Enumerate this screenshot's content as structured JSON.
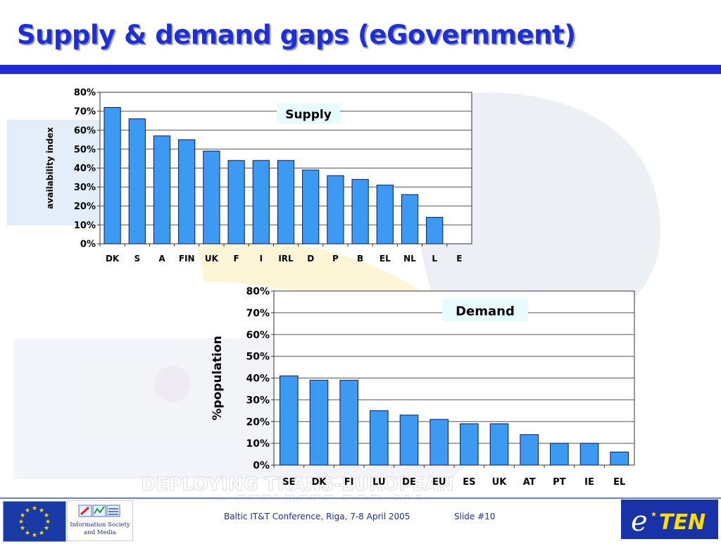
{
  "slide": {
    "title": "Supply & demand gaps (eGovernment)",
    "footer_text": "Baltic IT&T Conference, Riga, 7-8 April 2005",
    "slide_number": "Slide #10",
    "watermark_text": [
      "DEPLOYING TRANS-EUROPEAN",
      "e-SERVICES FOR ALL"
    ],
    "logos": {
      "information_society": [
        "Information Society",
        "and Media"
      ],
      "eten": [
        "e",
        "TEN"
      ]
    },
    "colors": {
      "title": "#1e2fd6",
      "title_bar": "#1c2bd6",
      "bar_fill": "#3d9af2",
      "bar_stroke": "#0b1a5e",
      "label_box": "#e8fbff"
    }
  },
  "chart_data": [
    {
      "type": "bar",
      "label_box": "Supply",
      "ylabel": "availability index",
      "xlabel": "",
      "ylim": [
        0,
        80
      ],
      "yticks": [
        0,
        10,
        20,
        30,
        40,
        50,
        60,
        70,
        80
      ],
      "ytick_labels": [
        "0%",
        "10%",
        "20%",
        "30%",
        "40%",
        "50%",
        "60%",
        "70%",
        "80%"
      ],
      "grid": true,
      "categories": [
        "DK",
        "S",
        "A",
        "FIN",
        "UK",
        "F",
        "I",
        "IRL",
        "D",
        "P",
        "B",
        "EL",
        "NL",
        "L",
        "E"
      ],
      "values": [
        72,
        66,
        57,
        55,
        49,
        44,
        44,
        44,
        39,
        36,
        34,
        31,
        26,
        14,
        0
      ]
    },
    {
      "type": "bar",
      "label_box": "Demand",
      "ylabel": "%population",
      "xlabel": "",
      "ylim": [
        0,
        80
      ],
      "yticks": [
        0,
        10,
        20,
        30,
        40,
        50,
        60,
        70,
        80
      ],
      "ytick_labels": [
        "0%",
        "10%",
        "20%",
        "30%",
        "40%",
        "50%",
        "60%",
        "70%",
        "80%"
      ],
      "grid": true,
      "categories": [
        "SE",
        "DK",
        "FI",
        "LU",
        "DE",
        "EU",
        "ES",
        "UK",
        "AT",
        "PT",
        "IE",
        "EL"
      ],
      "values": [
        41,
        39,
        39,
        25,
        23,
        21,
        19,
        19,
        14,
        10,
        10,
        6
      ]
    }
  ]
}
